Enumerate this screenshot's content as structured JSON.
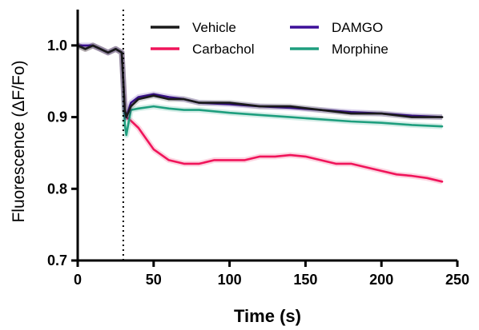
{
  "chart_data": {
    "type": "line",
    "xlabel": "Time (s)",
    "ylabel": "Fluorescence (ΔF/Fo)",
    "xlim": [
      0,
      250
    ],
    "ylim": [
      0.7,
      1.05
    ],
    "xticks": [
      0,
      50,
      100,
      150,
      200,
      250
    ],
    "yticks": [
      0.7,
      0.8,
      0.9,
      1.0
    ],
    "xtick_labels": [
      "0",
      "50",
      "100",
      "150",
      "200",
      "250"
    ],
    "ytick_labels": [
      "0.7",
      "0.8",
      "0.9",
      "1.0"
    ],
    "grid": false,
    "legend_position": "top-right",
    "annotations": [
      {
        "type": "vertical-dotted-line",
        "x": 30
      }
    ],
    "series": [
      {
        "name": "Vehicle",
        "color": "#1a1a1a",
        "x": [
          0,
          5,
          10,
          15,
          20,
          25,
          29,
          30,
          31,
          32,
          35,
          40,
          50,
          60,
          70,
          80,
          100,
          120,
          140,
          160,
          180,
          200,
          220,
          240
        ],
        "y": [
          1.0,
          0.995,
          1.0,
          0.995,
          0.99,
          0.995,
          0.99,
          0.95,
          0.91,
          0.9,
          0.915,
          0.925,
          0.93,
          0.925,
          0.925,
          0.92,
          0.92,
          0.915,
          0.915,
          0.91,
          0.905,
          0.905,
          0.9,
          0.9
        ]
      },
      {
        "name": "Carbachol",
        "color": "#f0145a",
        "x": [
          0,
          5,
          10,
          15,
          20,
          25,
          29,
          30,
          31,
          32,
          35,
          40,
          45,
          50,
          60,
          70,
          80,
          90,
          100,
          110,
          120,
          130,
          140,
          150,
          160,
          170,
          180,
          190,
          200,
          210,
          220,
          230,
          240
        ],
        "y": [
          1.0,
          0.995,
          1.0,
          0.995,
          0.99,
          0.995,
          0.99,
          0.95,
          0.91,
          0.9,
          0.895,
          0.885,
          0.87,
          0.855,
          0.84,
          0.835,
          0.835,
          0.84,
          0.84,
          0.84,
          0.845,
          0.845,
          0.847,
          0.845,
          0.84,
          0.835,
          0.835,
          0.83,
          0.825,
          0.82,
          0.818,
          0.815,
          0.81
        ]
      },
      {
        "name": "DAMGO",
        "color": "#3d0f99",
        "x": [
          0,
          5,
          10,
          15,
          20,
          25,
          29,
          30,
          31,
          32,
          35,
          40,
          50,
          60,
          70,
          80,
          100,
          120,
          140,
          160,
          180,
          200,
          220,
          240
        ],
        "y": [
          1.0,
          1.0,
          1.0,
          0.995,
          0.99,
          0.995,
          0.99,
          0.95,
          0.91,
          0.9,
          0.92,
          0.928,
          0.932,
          0.928,
          0.925,
          0.92,
          0.918,
          0.915,
          0.913,
          0.91,
          0.907,
          0.905,
          0.902,
          0.9
        ]
      },
      {
        "name": "Morphine",
        "color": "#1e9e7e",
        "x": [
          0,
          5,
          10,
          15,
          20,
          25,
          29,
          30,
          31,
          32,
          35,
          40,
          50,
          60,
          70,
          80,
          100,
          120,
          140,
          160,
          180,
          200,
          220,
          240
        ],
        "y": [
          1.0,
          0.995,
          1.0,
          0.995,
          0.99,
          0.995,
          0.99,
          0.95,
          0.89,
          0.875,
          0.91,
          0.912,
          0.915,
          0.912,
          0.91,
          0.91,
          0.906,
          0.903,
          0.9,
          0.897,
          0.894,
          0.892,
          0.889,
          0.887
        ]
      }
    ]
  }
}
